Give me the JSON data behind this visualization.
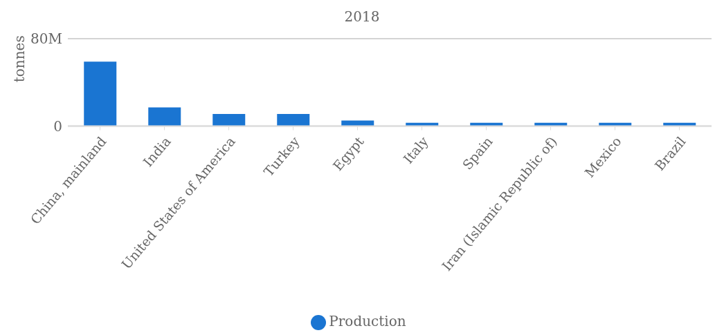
{
  "chart_data": {
    "type": "bar",
    "title": "2018",
    "ylabel": "tonnes",
    "categories": [
      "China, mainland",
      "India",
      "United States of America",
      "Turkey",
      "Egypt",
      "Italy",
      "Spain",
      "Iran (Islamic Republic of)",
      "Mexico",
      "Brazil"
    ],
    "series": [
      {
        "name": "Production",
        "color": "#1a75d2",
        "values": [
          59000000,
          17000000,
          11000000,
          11000000,
          5000000,
          3000000,
          3000000,
          3000000,
          3000000,
          3000000
        ]
      }
    ],
    "ylim": [
      0,
      80000000
    ],
    "yticks": [
      {
        "value": 0,
        "label": "0"
      },
      {
        "value": 80000000,
        "label": "80M"
      }
    ],
    "grid": "y",
    "legend": "bottom"
  }
}
